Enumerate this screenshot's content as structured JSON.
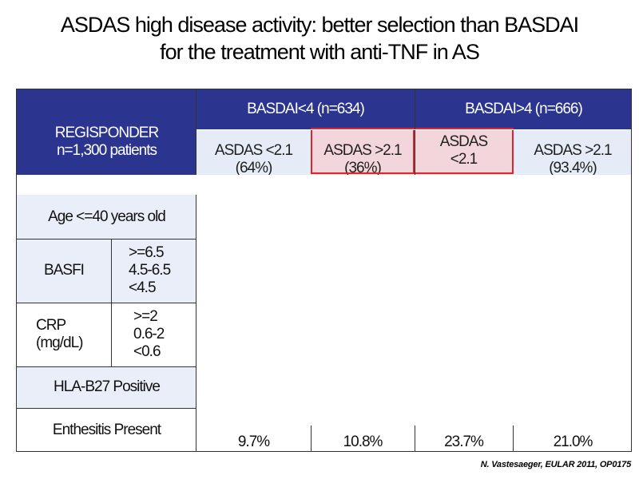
{
  "title": {
    "line1": "ASDAS high disease activity: better selection than BASDAI",
    "line2": "for the treatment with anti-TNF in AS"
  },
  "table": {
    "corner": {
      "line1": "REGISPONDER",
      "line2": "n=1,300 patients"
    },
    "groups": [
      {
        "label": "BASDAI<4 (n=634)"
      },
      {
        "label": "BASDAI>4 (n=666)"
      }
    ],
    "subheaders": [
      {
        "line1": "ASDAS <2.1",
        "line2": "(64%)"
      },
      {
        "line1": "ASDAS >2.1",
        "line2": "(36%)"
      },
      {
        "line1": "ASDAS",
        "line2": "<2.1"
      },
      {
        "line1": "ASDAS >2.1",
        "line2": "(93.4%)"
      }
    ],
    "rows": {
      "age": {
        "label": "Age <=40 years old"
      },
      "basfi": {
        "label": "BASFI",
        "levels": [
          ">=6.5",
          "4.5-6.5",
          "<4.5"
        ]
      },
      "crp": {
        "label_line1": "CRP",
        "label_line2": "(mg/dL)",
        "levels": [
          ">=2",
          "0.6-2",
          "<0.6"
        ]
      },
      "hla": {
        "label": "HLA-B27 Positive"
      },
      "enthesitis": {
        "label": "Enthesitis Present",
        "values": [
          "9.7%",
          "10.8%",
          "23.7%",
          "21.0%"
        ]
      }
    }
  },
  "footnote": "N. Vastesaeger, EULAR 2011, OP0175",
  "colors": {
    "header_blue": "#2b348f",
    "header_light": "#e6ecf7",
    "highlight_pink": "#f3d6db",
    "highlight_border": "#e0242b"
  }
}
